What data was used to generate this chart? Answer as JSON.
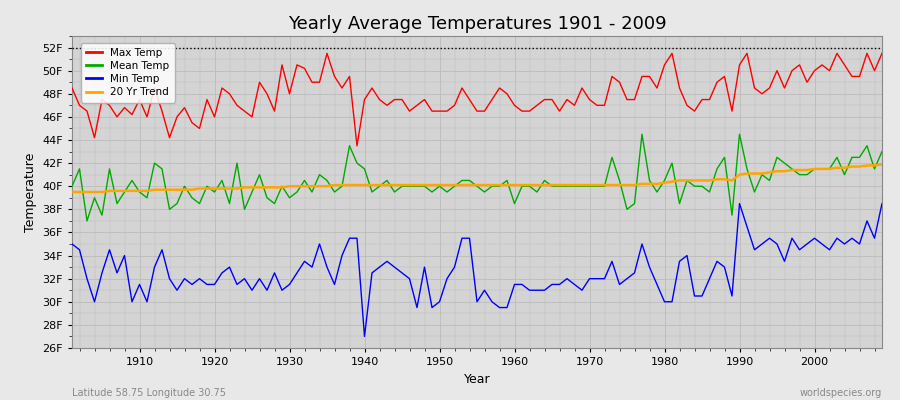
{
  "title": "Yearly Average Temperatures 1901 - 2009",
  "xlabel": "Year",
  "ylabel": "Temperature",
  "lat_lon_label": "Latitude 58.75 Longitude 30.75",
  "credit": "worldspecies.org",
  "years": [
    1901,
    1902,
    1903,
    1904,
    1905,
    1906,
    1907,
    1908,
    1909,
    1910,
    1911,
    1912,
    1913,
    1914,
    1915,
    1916,
    1917,
    1918,
    1919,
    1920,
    1921,
    1922,
    1923,
    1924,
    1925,
    1926,
    1927,
    1928,
    1929,
    1930,
    1931,
    1932,
    1933,
    1934,
    1935,
    1936,
    1937,
    1938,
    1939,
    1940,
    1941,
    1942,
    1943,
    1944,
    1945,
    1946,
    1947,
    1948,
    1949,
    1950,
    1951,
    1952,
    1953,
    1954,
    1955,
    1956,
    1957,
    1958,
    1959,
    1960,
    1961,
    1962,
    1963,
    1964,
    1965,
    1966,
    1967,
    1968,
    1969,
    1970,
    1971,
    1972,
    1973,
    1974,
    1975,
    1976,
    1977,
    1978,
    1979,
    1980,
    1981,
    1982,
    1983,
    1984,
    1985,
    1986,
    1987,
    1988,
    1989,
    1990,
    1991,
    1992,
    1993,
    1994,
    1995,
    1996,
    1997,
    1998,
    1999,
    2000,
    2001,
    2002,
    2003,
    2004,
    2005,
    2006,
    2007,
    2008,
    2009
  ],
  "max_temp": [
    48.5,
    47.0,
    46.5,
    44.2,
    47.5,
    47.0,
    46.0,
    46.8,
    46.2,
    47.5,
    46.0,
    48.5,
    46.5,
    44.2,
    46.0,
    46.8,
    45.5,
    45.0,
    47.5,
    46.0,
    48.5,
    48.0,
    47.0,
    46.5,
    46.0,
    49.0,
    48.0,
    46.5,
    50.5,
    48.0,
    50.5,
    50.2,
    49.0,
    49.0,
    51.5,
    49.5,
    48.5,
    49.5,
    43.5,
    47.5,
    48.5,
    47.5,
    47.0,
    47.5,
    47.5,
    46.5,
    47.0,
    47.5,
    46.5,
    46.5,
    46.5,
    47.0,
    48.5,
    47.5,
    46.5,
    46.5,
    47.5,
    48.5,
    48.0,
    47.0,
    46.5,
    46.5,
    47.0,
    47.5,
    47.5,
    46.5,
    47.5,
    47.0,
    48.5,
    47.5,
    47.0,
    47.0,
    49.5,
    49.0,
    47.5,
    47.5,
    49.5,
    49.5,
    48.5,
    50.5,
    51.5,
    48.5,
    47.0,
    46.5,
    47.5,
    47.5,
    49.0,
    49.5,
    46.5,
    50.5,
    51.5,
    48.5,
    48.0,
    48.5,
    50.0,
    48.5,
    50.0,
    50.5,
    49.0,
    50.0,
    50.5,
    50.0,
    51.5,
    50.5,
    49.5,
    49.5,
    51.5,
    50.0,
    51.5
  ],
  "mean_temp": [
    40.0,
    41.5,
    37.0,
    39.0,
    37.5,
    41.5,
    38.5,
    39.5,
    40.5,
    39.5,
    39.0,
    42.0,
    41.5,
    38.0,
    38.5,
    40.0,
    39.0,
    38.5,
    40.0,
    39.5,
    40.5,
    38.5,
    42.0,
    38.0,
    39.5,
    41.0,
    39.0,
    38.5,
    40.0,
    39.0,
    39.5,
    40.5,
    39.5,
    41.0,
    40.5,
    39.5,
    40.0,
    43.5,
    42.0,
    41.5,
    39.5,
    40.0,
    40.5,
    39.5,
    40.0,
    40.0,
    40.0,
    40.0,
    39.5,
    40.0,
    39.5,
    40.0,
    40.5,
    40.5,
    40.0,
    39.5,
    40.0,
    40.0,
    40.5,
    38.5,
    40.0,
    40.0,
    39.5,
    40.5,
    40.0,
    40.0,
    40.0,
    40.0,
    40.0,
    40.0,
    40.0,
    40.0,
    42.5,
    40.5,
    38.0,
    38.5,
    44.5,
    40.5,
    39.5,
    40.5,
    42.0,
    38.5,
    40.5,
    40.0,
    40.0,
    39.5,
    41.5,
    42.5,
    37.5,
    44.5,
    41.5,
    39.5,
    41.0,
    40.5,
    42.5,
    42.0,
    41.5,
    41.0,
    41.0,
    41.5,
    41.5,
    41.5,
    42.5,
    41.0,
    42.5,
    42.5,
    43.5,
    41.5,
    43.0
  ],
  "min_temp": [
    35.0,
    34.5,
    32.0,
    30.0,
    32.5,
    34.5,
    32.5,
    34.0,
    30.0,
    31.5,
    30.0,
    33.0,
    34.5,
    32.0,
    31.0,
    32.0,
    31.5,
    32.0,
    31.5,
    31.5,
    32.5,
    33.0,
    31.5,
    32.0,
    31.0,
    32.0,
    31.0,
    32.5,
    31.0,
    31.5,
    32.5,
    33.5,
    33.0,
    35.0,
    33.0,
    31.5,
    34.0,
    35.5,
    35.5,
    27.0,
    32.5,
    33.0,
    33.5,
    33.0,
    32.5,
    32.0,
    29.5,
    33.0,
    29.5,
    30.0,
    32.0,
    33.0,
    35.5,
    35.5,
    30.0,
    31.0,
    30.0,
    29.5,
    29.5,
    31.5,
    31.5,
    31.0,
    31.0,
    31.0,
    31.5,
    31.5,
    32.0,
    31.5,
    31.0,
    32.0,
    32.0,
    32.0,
    33.5,
    31.5,
    32.0,
    32.5,
    35.0,
    33.0,
    31.5,
    30.0,
    30.0,
    33.5,
    34.0,
    30.5,
    30.5,
    32.0,
    33.5,
    33.0,
    30.5,
    38.5,
    36.5,
    34.5,
    35.0,
    35.5,
    35.0,
    33.5,
    35.5,
    34.5,
    35.0,
    35.5,
    35.0,
    34.5,
    35.5,
    35.0,
    35.5,
    35.0,
    37.0,
    35.5,
    38.5
  ],
  "trend_values": [
    39.5,
    39.5,
    39.5,
    39.5,
    39.5,
    39.6,
    39.6,
    39.6,
    39.6,
    39.6,
    39.6,
    39.7,
    39.7,
    39.7,
    39.7,
    39.7,
    39.7,
    39.8,
    39.8,
    39.8,
    39.8,
    39.8,
    39.8,
    39.9,
    39.9,
    39.9,
    39.9,
    39.9,
    39.9,
    40.0,
    40.0,
    40.0,
    40.0,
    40.0,
    40.0,
    40.1,
    40.1,
    40.1,
    40.1,
    40.1,
    40.1,
    40.1,
    40.1,
    40.1,
    40.1,
    40.1,
    40.1,
    40.1,
    40.1,
    40.1,
    40.1,
    40.1,
    40.1,
    40.1,
    40.1,
    40.1,
    40.1,
    40.1,
    40.1,
    40.1,
    40.1,
    40.1,
    40.1,
    40.1,
    40.1,
    40.1,
    40.1,
    40.1,
    40.1,
    40.1,
    40.1,
    40.1,
    40.1,
    40.1,
    40.1,
    40.1,
    40.2,
    40.2,
    40.2,
    40.3,
    40.4,
    40.5,
    40.5,
    40.5,
    40.5,
    40.5,
    40.6,
    40.6,
    40.5,
    41.0,
    41.1,
    41.1,
    41.1,
    41.2,
    41.3,
    41.3,
    41.4,
    41.4,
    41.4,
    41.5,
    41.5,
    41.5,
    41.6,
    41.6,
    41.7,
    41.7,
    41.8,
    41.8,
    41.9
  ],
  "bg_color": "#e8e8e8",
  "plot_bg_color": "#d4d4d4",
  "max_color": "#ff0000",
  "mean_color": "#00aa00",
  "min_color": "#0000ff",
  "trend_color": "#ffa500",
  "grid_color": "#bbbbbb",
  "ylim": [
    26,
    53
  ],
  "yticks": [
    26,
    28,
    30,
    32,
    34,
    36,
    38,
    40,
    42,
    44,
    46,
    48,
    50,
    52
  ],
  "yticklabels": [
    "26F",
    "28F",
    "30F",
    "32F",
    "34F",
    "36F",
    "38F",
    "40F",
    "42F",
    "44F",
    "46F",
    "48F",
    "50F",
    "52F"
  ],
  "xticks": [
    1910,
    1920,
    1930,
    1940,
    1950,
    1960,
    1970,
    1980,
    1990,
    2000
  ],
  "xticklabels": [
    "1910",
    "1920",
    "1930",
    "1940",
    "1950",
    "1960",
    "1970",
    "1980",
    "1990",
    "2000"
  ],
  "title_fontsize": 13,
  "axis_fontsize": 9,
  "tick_fontsize": 8,
  "linewidth": 1.0
}
